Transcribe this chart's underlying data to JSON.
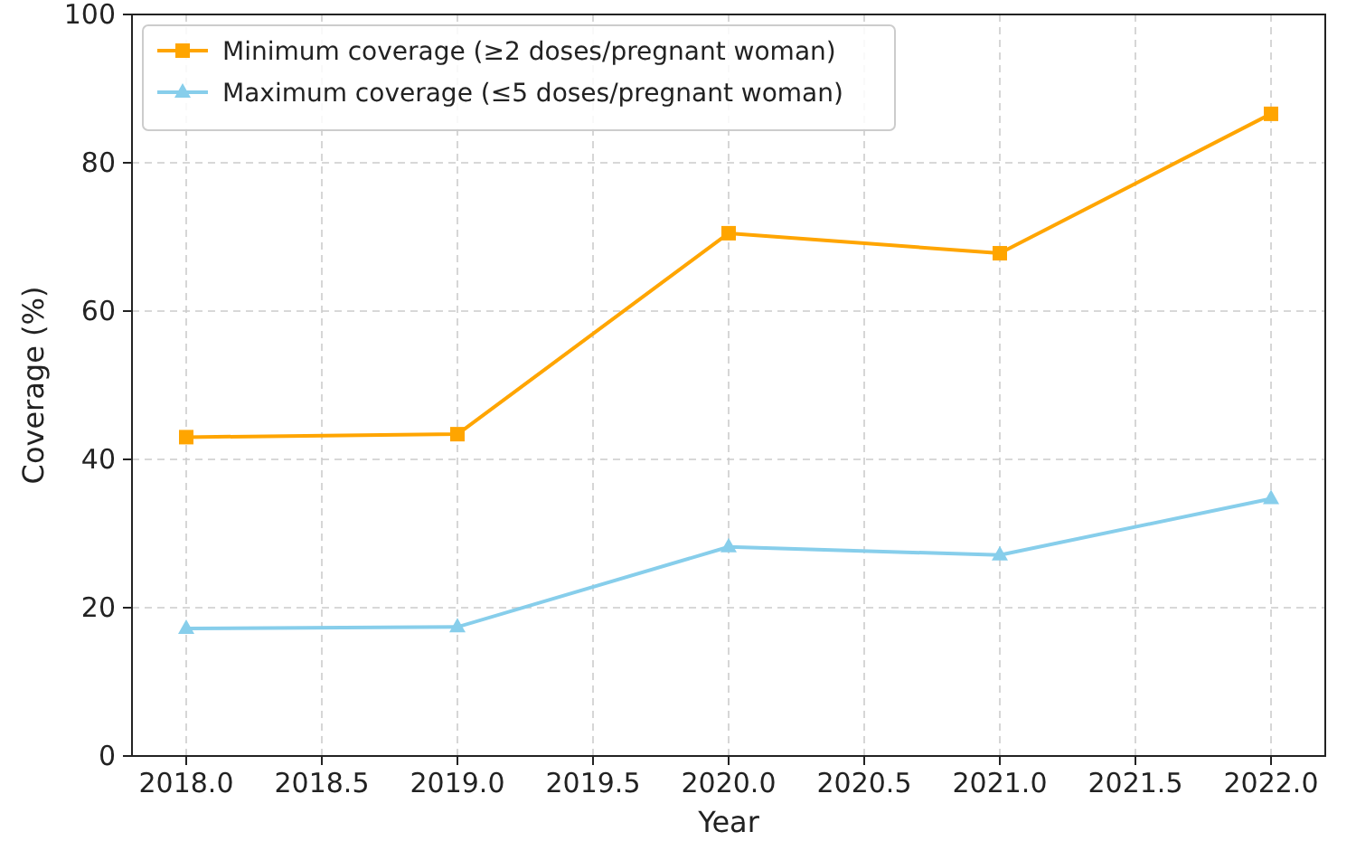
{
  "chart_data": {
    "type": "line",
    "xlabel": "Year",
    "ylabel": "Coverage (%)",
    "x": [
      2018,
      2019,
      2020,
      2021,
      2022
    ],
    "series": [
      {
        "name": "Minimum coverage (≥2 doses/pregnant woman)",
        "color": "#ffa500",
        "values": [
          43.0,
          43.4,
          70.5,
          67.8,
          86.6
        ],
        "marker": "square"
      },
      {
        "name": "Maximum coverage (≤5 doses/pregnant woman)",
        "color": "#87ceeb",
        "values": [
          17.2,
          17.4,
          28.2,
          27.1,
          34.7
        ],
        "marker": "triangle"
      }
    ],
    "xlim": [
      2017.8,
      2022.2
    ],
    "xticks": [
      {
        "value": 2018,
        "label": "2018.0"
      },
      {
        "value": 2018.5,
        "label": "2018.5"
      },
      {
        "value": 2019,
        "label": "2019.0"
      },
      {
        "value": 2019.5,
        "label": "2019.5"
      },
      {
        "value": 2020,
        "label": "2020.0"
      },
      {
        "value": 2020.5,
        "label": "2020.5"
      },
      {
        "value": 2021,
        "label": "2021.0"
      },
      {
        "value": 2021.5,
        "label": "2021.5"
      },
      {
        "value": 2022,
        "label": "2022.0"
      }
    ],
    "ylim": [
      0,
      100
    ],
    "yticks": [
      0,
      20,
      40,
      60,
      80,
      100
    ],
    "grid": true,
    "legend": "top left",
    "line_style": "solid"
  }
}
